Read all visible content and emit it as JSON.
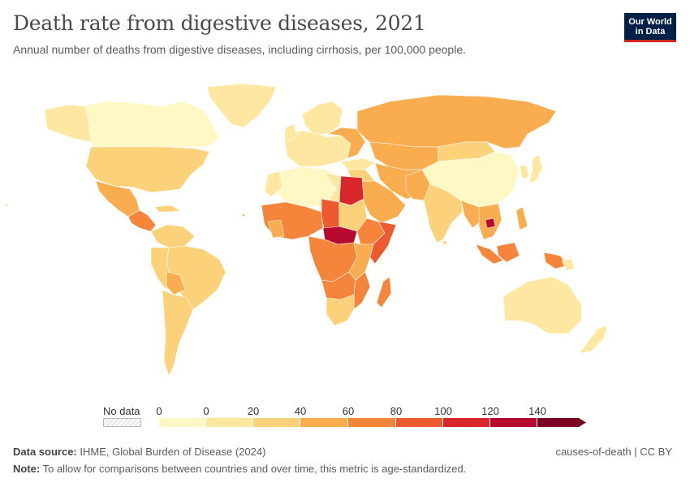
{
  "header": {
    "title": "Death rate from digestive diseases, 2021",
    "subtitle": "Annual number of deaths from digestive diseases, including cirrhosis, per 100,000 people."
  },
  "logo": {
    "line1": "Our World",
    "line2": "in Data"
  },
  "legend": {
    "no_data_label": "No data",
    "ticks": [
      "0",
      "0",
      "20",
      "40",
      "60",
      "80",
      "100",
      "120",
      "140"
    ],
    "colors": [
      "#fff7c4",
      "#fde7a1",
      "#fbd279",
      "#f9ad4f",
      "#f5853b",
      "#ee5a2f",
      "#d9262b",
      "#b7082f",
      "#7a0022"
    ]
  },
  "footer": {
    "source_label": "Data source:",
    "source_text": "IHME, Global Burden of Disease (2024)",
    "note_label": "Note:",
    "note_text": "To allow for comparisons between countries and over time, this metric is age-standardized.",
    "license": "causes-of-death | CC BY"
  }
}
